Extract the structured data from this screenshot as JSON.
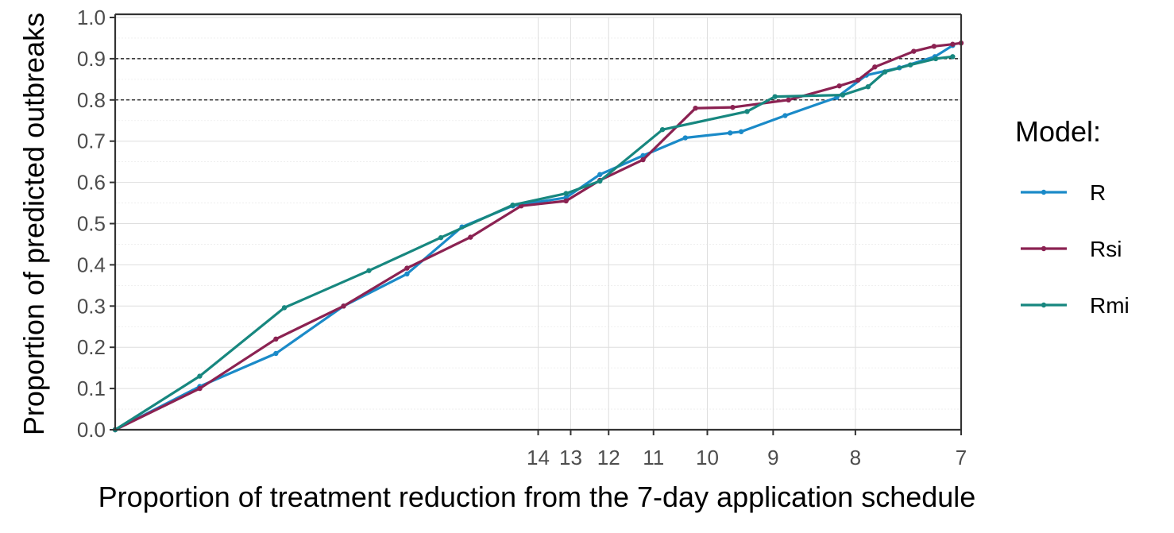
{
  "chart_data": {
    "type": "line",
    "xlabel": "Proportion of treatment reduction from the 7-day application schedule",
    "ylabel": "Proportion of predicted outbreaks",
    "xlim": [
      0,
      1
    ],
    "ylim": [
      0,
      1
    ],
    "x_scale": "reciprocal",
    "x_ticks": [
      {
        "label": "14",
        "value": 14
      },
      {
        "label": "13",
        "value": 13
      },
      {
        "label": "12",
        "value": 12
      },
      {
        "label": "11",
        "value": 11
      },
      {
        "label": "10",
        "value": 10
      },
      {
        "label": "9",
        "value": 9
      },
      {
        "label": "8",
        "value": 8
      },
      {
        "label": "7",
        "value": 7
      }
    ],
    "y_ticks": [
      "0.0",
      "0.1",
      "0.2",
      "0.3",
      "0.4",
      "0.5",
      "0.6",
      "0.7",
      "0.8",
      "0.9",
      "1.0"
    ],
    "reference_lines": [
      0.8,
      0.9
    ],
    "grid": true,
    "legend": {
      "title": "Model:",
      "position": "right"
    },
    "series": [
      {
        "name": "R",
        "color": "#1a8ac8",
        "x": [
          0.0,
          0.1,
          0.19,
          0.27,
          0.345,
          0.41,
          0.47,
          0.533,
          0.573,
          0.624,
          0.674,
          0.727,
          0.74,
          0.792,
          0.853,
          0.888,
          0.927,
          0.969,
          0.99
        ],
        "y": [
          0.0,
          0.105,
          0.185,
          0.3,
          0.378,
          0.492,
          0.543,
          0.563,
          0.619,
          0.665,
          0.708,
          0.72,
          0.723,
          0.762,
          0.806,
          0.86,
          0.878,
          0.905,
          0.932
        ]
      },
      {
        "name": "Rsi",
        "color": "#8b2252",
        "x": [
          0.0,
          0.1,
          0.19,
          0.27,
          0.345,
          0.42,
          0.48,
          0.533,
          0.573,
          0.624,
          0.686,
          0.73,
          0.796,
          0.856,
          0.878,
          0.898,
          0.944,
          0.968,
          0.99,
          1.0
        ],
        "y": [
          0.0,
          0.1,
          0.22,
          0.3,
          0.392,
          0.467,
          0.543,
          0.555,
          0.605,
          0.655,
          0.78,
          0.782,
          0.8,
          0.834,
          0.848,
          0.88,
          0.918,
          0.93,
          0.935,
          0.938
        ]
      },
      {
        "name": "Rmi",
        "color": "#17877f",
        "x": [
          0.0,
          0.1,
          0.2,
          0.3,
          0.385,
          0.47,
          0.533,
          0.573,
          0.647,
          0.747,
          0.78,
          0.86,
          0.89,
          0.91,
          0.94,
          0.97,
          0.99
        ],
        "y": [
          0.0,
          0.13,
          0.296,
          0.386,
          0.466,
          0.545,
          0.573,
          0.603,
          0.728,
          0.772,
          0.808,
          0.812,
          0.832,
          0.868,
          0.885,
          0.9,
          0.905
        ]
      }
    ]
  }
}
